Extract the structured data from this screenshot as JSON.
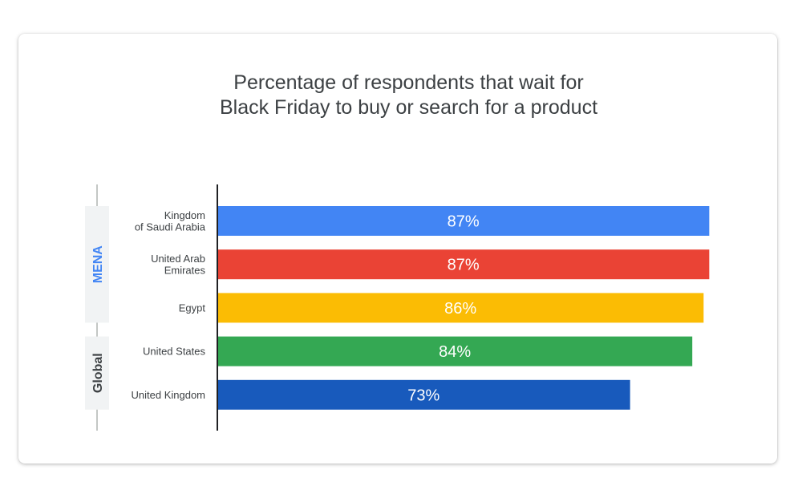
{
  "chart_data": {
    "type": "bar",
    "orientation": "horizontal",
    "title_lines": [
      "Percentage of respondents that wait for",
      "Black Friday to buy or search for a product"
    ],
    "xlim": [
      0,
      100
    ],
    "grid": false,
    "legend": "none",
    "unit": "%",
    "groups": [
      {
        "label": "MENA",
        "color": "#4285f4",
        "categories": [
          0,
          1,
          2
        ]
      },
      {
        "label": "Global",
        "color": "#3c4043",
        "categories": [
          3,
          4
        ]
      }
    ],
    "categories": [
      {
        "label_lines": [
          "Kingdom",
          "of Saudi Arabia"
        ],
        "value": 87,
        "value_label": "87%",
        "color": "#4285f4"
      },
      {
        "label_lines": [
          "United Arab",
          "Emirates"
        ],
        "value": 87,
        "value_label": "87%",
        "color": "#ea4335"
      },
      {
        "label_lines": [
          "Egypt"
        ],
        "value": 86,
        "value_label": "86%",
        "color": "#fbbc04"
      },
      {
        "label_lines": [
          "United States"
        ],
        "value": 84,
        "value_label": "84%",
        "color": "#34a853"
      },
      {
        "label_lines": [
          "United Kingdom"
        ],
        "value": 73,
        "value_label": "73%",
        "color": "#185abc"
      }
    ]
  }
}
